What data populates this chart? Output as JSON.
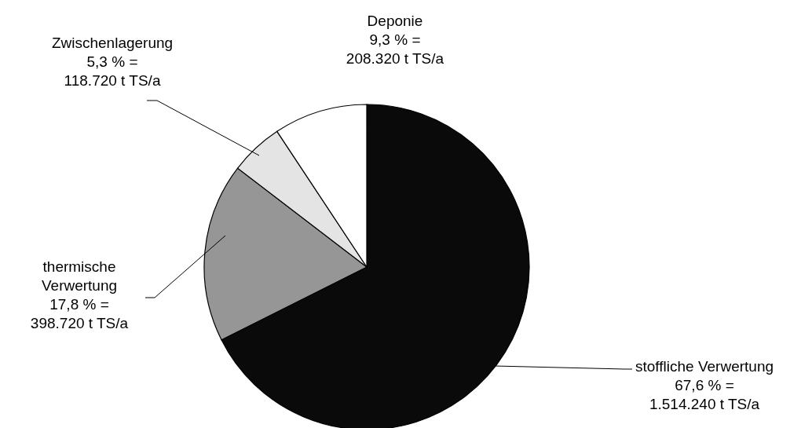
{
  "chart_data": {
    "type": "pie",
    "categories": [
      "stoffliche Verwertung",
      "thermische Verwertung",
      "Zwischenlagerung",
      "Deponie"
    ],
    "values": [
      1514240,
      398720,
      118720,
      208320
    ],
    "colors": [
      "#0a0a0a",
      "#969696",
      "#e4e4e4",
      "#ffffff"
    ],
    "value_labels": [
      "67,6 % =\n1.514.240 t TS/a",
      "17,8 % =\n398.720 t TS/a",
      "5,3 % =\n118.720 t TS/a",
      "9,3 % =\n208.320 t TS/a"
    ]
  }
}
